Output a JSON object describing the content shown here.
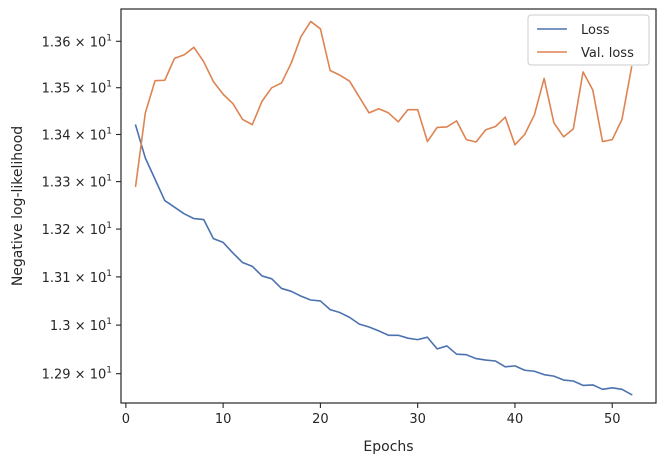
{
  "chart_data": {
    "type": "line",
    "title": "",
    "xlabel": "Epochs",
    "ylabel": "Negative log-likelihood",
    "xlim": [
      -0.5,
      54.5
    ],
    "ylim": [
      12.84,
      13.67
    ],
    "yscale": "log",
    "grid": false,
    "legend_position": "top-right",
    "x_ticks": [
      0,
      10,
      20,
      30,
      40,
      50
    ],
    "y_ticks": [
      {
        "value": 12.9,
        "mantissa": "1.29",
        "exponent": "1"
      },
      {
        "value": 13.0,
        "mantissa": "1.3",
        "exponent": "1"
      },
      {
        "value": 13.1,
        "mantissa": "1.31",
        "exponent": "1"
      },
      {
        "value": 13.2,
        "mantissa": "1.32",
        "exponent": "1"
      },
      {
        "value": 13.3,
        "mantissa": "1.33",
        "exponent": "1"
      },
      {
        "value": 13.4,
        "mantissa": "1.34",
        "exponent": "1"
      },
      {
        "value": 13.5,
        "mantissa": "1.35",
        "exponent": "1"
      },
      {
        "value": 13.6,
        "mantissa": "1.36",
        "exponent": "1"
      }
    ],
    "x": [
      1,
      2,
      3,
      4,
      5,
      6,
      7,
      8,
      9,
      10,
      11,
      12,
      13,
      14,
      15,
      16,
      17,
      18,
      19,
      20,
      21,
      22,
      23,
      24,
      25,
      26,
      27,
      28,
      29,
      30,
      31,
      32,
      33,
      34,
      35,
      36,
      37,
      38,
      39,
      40,
      41,
      42,
      43,
      44,
      45,
      46,
      47,
      48,
      49,
      50,
      51,
      52
    ],
    "series": [
      {
        "name": "Loss",
        "color": "#4c72b0",
        "values": [
          13.42,
          13.35,
          13.305,
          13.26,
          13.246,
          13.232,
          13.222,
          13.22,
          13.18,
          13.172,
          13.15,
          13.13,
          13.122,
          13.102,
          13.096,
          13.076,
          13.07,
          13.06,
          13.052,
          13.05,
          13.032,
          13.026,
          13.016,
          13.002,
          12.996,
          12.988,
          12.979,
          12.979,
          12.973,
          12.97,
          12.975,
          12.951,
          12.957,
          12.94,
          12.939,
          12.931,
          12.928,
          12.926,
          12.914,
          12.916,
          12.907,
          12.905,
          12.898,
          12.895,
          12.887,
          12.885,
          12.876,
          12.877,
          12.868,
          12.871,
          12.868,
          12.857
        ]
      },
      {
        "name": "Val. loss",
        "color": "#dd8452",
        "values": [
          13.29,
          13.446,
          13.515,
          13.516,
          13.563,
          13.571,
          13.587,
          13.556,
          13.513,
          13.486,
          13.466,
          13.432,
          13.421,
          13.471,
          13.5,
          13.51,
          13.553,
          13.61,
          13.643,
          13.627,
          13.537,
          13.527,
          13.514,
          13.48,
          13.446,
          13.455,
          13.446,
          13.427,
          13.453,
          13.453,
          13.385,
          13.415,
          13.416,
          13.429,
          13.389,
          13.384,
          13.41,
          13.417,
          13.437,
          13.378,
          13.4,
          13.442,
          13.52,
          13.425,
          13.395,
          13.412,
          13.534,
          13.495,
          13.385,
          13.389,
          13.432,
          13.545
        ]
      }
    ]
  }
}
